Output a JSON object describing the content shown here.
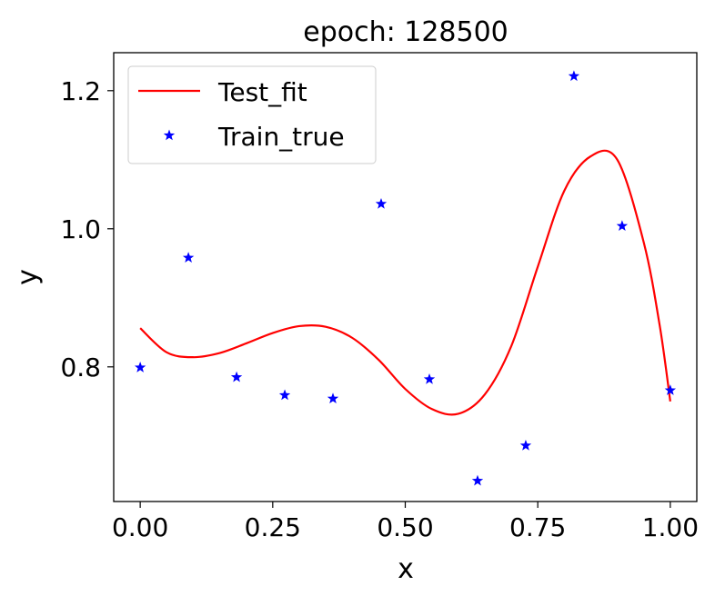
{
  "chart_data": {
    "type": "line",
    "title": "epoch: 128500",
    "xlabel": "x",
    "ylabel": "y",
    "xlim": [
      -0.05,
      1.05
    ],
    "ylim": [
      0.605,
      1.255
    ],
    "xticks": [
      0.0,
      0.25,
      0.5,
      0.75,
      1.0
    ],
    "xtick_labels": [
      "0.00",
      "0.25",
      "0.50",
      "0.75",
      "1.00"
    ],
    "yticks": [
      0.8,
      1.0,
      1.2
    ],
    "ytick_labels": [
      "0.8",
      "1.0",
      "1.2"
    ],
    "grid": false,
    "legend_position": "top-left",
    "series": [
      {
        "name": "Test_fit",
        "kind": "line",
        "color": "#ff0000",
        "x": [
          0.0,
          0.05,
          0.1,
          0.15,
          0.2,
          0.25,
          0.3,
          0.35,
          0.4,
          0.45,
          0.5,
          0.55,
          0.6,
          0.65,
          0.7,
          0.75,
          0.8,
          0.85,
          0.9,
          0.95,
          0.98,
          1.0
        ],
        "y": [
          0.856,
          0.821,
          0.814,
          0.82,
          0.834,
          0.849,
          0.859,
          0.858,
          0.842,
          0.81,
          0.768,
          0.739,
          0.732,
          0.76,
          0.83,
          0.945,
          1.055,
          1.105,
          1.1,
          0.98,
          0.86,
          0.75
        ]
      },
      {
        "name": "Train_true",
        "kind": "scatter",
        "marker": "star",
        "color": "#0000ff",
        "x": [
          0.0,
          0.0909,
          0.1818,
          0.2727,
          0.3636,
          0.4545,
          0.5455,
          0.6364,
          0.7273,
          0.8182,
          0.9091,
          1.0
        ],
        "y": [
          0.799,
          0.958,
          0.785,
          0.759,
          0.754,
          1.036,
          0.782,
          0.635,
          0.686,
          1.221,
          1.004,
          0.766
        ]
      }
    ]
  }
}
